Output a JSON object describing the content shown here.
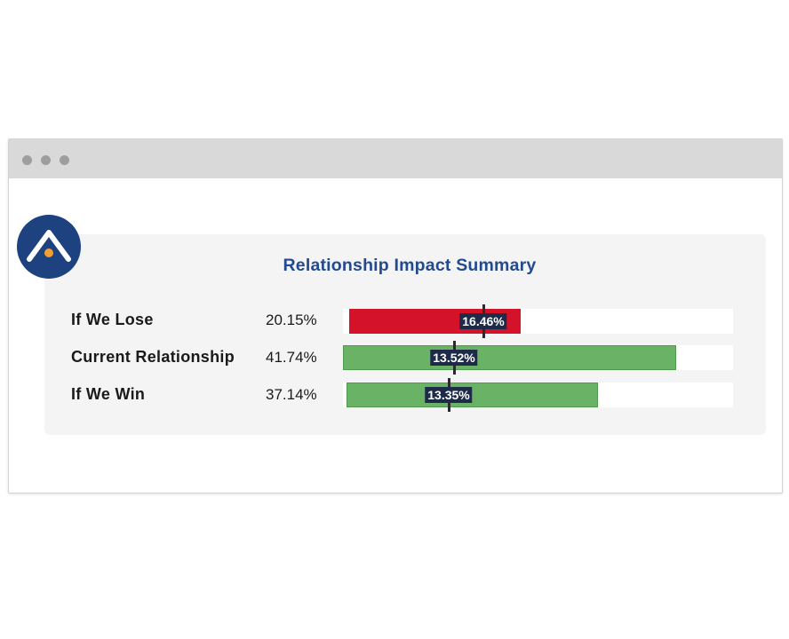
{
  "window": {
    "title_dots": [
      "dot-1",
      "dot-2",
      "dot-3"
    ]
  },
  "logo": {
    "icon": "caret-up-with-dot-icon",
    "background": "#1e4180",
    "accent": "#f0a030"
  },
  "summary": {
    "title": "Relationship Impact Summary",
    "rows": [
      {
        "label": "If We Lose",
        "percent": "20.15%",
        "bar_fraction": 0.44,
        "bar_offset_fraction": 0.015,
        "color": "#d4132a",
        "marker_fraction": 0.36,
        "marker_label": "16.46%"
      },
      {
        "label": "Current Relationship",
        "percent": "41.74%",
        "bar_fraction": 0.855,
        "bar_offset_fraction": 0.0,
        "color": "#6ab366",
        "marker_fraction": 0.285,
        "marker_label": "13.52%"
      },
      {
        "label": "If We Win",
        "percent": "37.14%",
        "bar_fraction": 0.645,
        "bar_offset_fraction": 0.01,
        "color": "#6ab366",
        "marker_fraction": 0.27,
        "marker_label": "13.35%"
      }
    ]
  },
  "colors": {
    "title": "#234a8f",
    "loss": "#d4132a",
    "gain": "#6ab366",
    "marker_label_bg": "#1d2b49"
  }
}
